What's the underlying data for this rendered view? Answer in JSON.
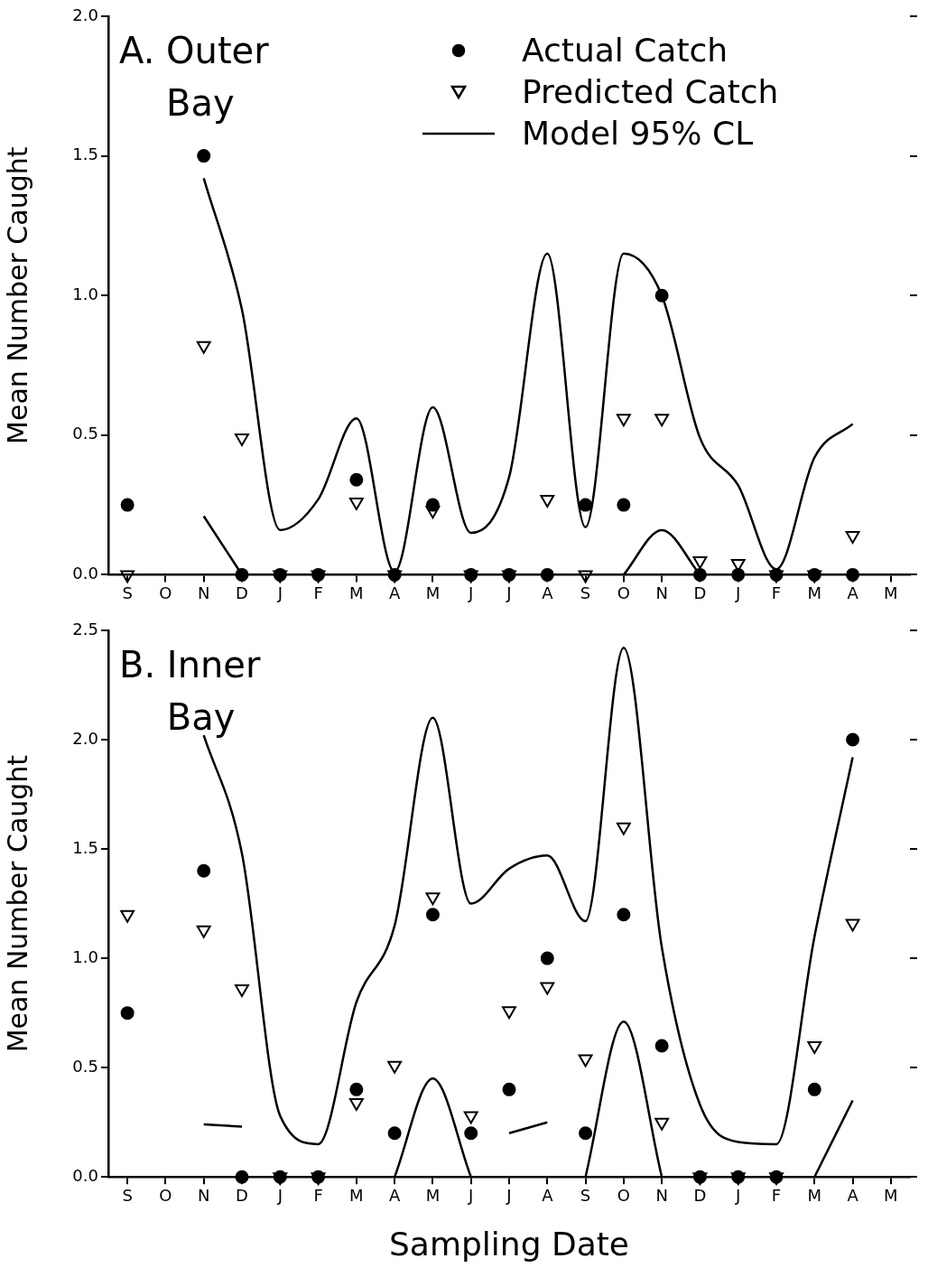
{
  "chart_data": [
    {
      "type": "scatter",
      "title": "A. Outer Bay",
      "ylabel": "Mean Number Caught",
      "legend": "top right",
      "categories": [
        "S",
        "O",
        "N",
        "D",
        "J",
        "F",
        "M",
        "A",
        "M",
        "J",
        "J",
        "A",
        "S",
        "O",
        "N",
        "D",
        "J",
        "F",
        "M",
        "A",
        "M"
      ],
      "ylim": [
        0,
        2
      ],
      "yticks": [
        {
          "value": 0,
          "label": "0.0"
        },
        {
          "value": 0.5,
          "label": "0.5"
        },
        {
          "value": 1,
          "label": "1.0"
        },
        {
          "value": 1.5,
          "label": "1.5"
        },
        {
          "value": 2,
          "label": "2.0"
        }
      ],
      "series": [
        {
          "name": "Actual Catch",
          "type": "scatter",
          "marker": "circle",
          "color": "#000000",
          "values": [
            0.25,
            null,
            1.5,
            0,
            0,
            0,
            0.34,
            0,
            0.25,
            0,
            0,
            0,
            0.25,
            0.25,
            1.0,
            0,
            0,
            0,
            0,
            0,
            null
          ]
        },
        {
          "name": "Predicted Catch",
          "type": "scatter",
          "marker": "triangle",
          "color": "#000000",
          "values": [
            0,
            null,
            0.82,
            0.49,
            0,
            0,
            0.26,
            0,
            0.23,
            0,
            0,
            0.27,
            0,
            0.56,
            0.56,
            0.05,
            0.04,
            0,
            0,
            0.14,
            null
          ]
        },
        {
          "name": "Model 95% CL",
          "type": "line",
          "marker": "none",
          "color": "#000000",
          "values": [
            null,
            null,
            1.42,
            0.95,
            0.16,
            0.27,
            0.56,
            0.01,
            0.6,
            0.15,
            0.35,
            1.15,
            0.17,
            1.15,
            1.0,
            0.49,
            0.32,
            0.02,
            0.42,
            0.54,
            null
          ]
        },
        {
          "type": "line",
          "marker": "none",
          "color": "#000000",
          "values": [
            null,
            null,
            0.21,
            0,
            null,
            null,
            null,
            null,
            null,
            null,
            null,
            null,
            null,
            null,
            null,
            null,
            null,
            null,
            null,
            null,
            null
          ]
        },
        {
          "type": "line",
          "marker": "none",
          "color": "#000000",
          "values": [
            null,
            null,
            null,
            null,
            null,
            null,
            null,
            null,
            null,
            null,
            null,
            null,
            null,
            0,
            0.16,
            0,
            null,
            null,
            null,
            null,
            null
          ]
        }
      ]
    },
    {
      "type": "scatter",
      "title": "B. Inner Bay",
      "xlabel": "Sampling Date",
      "ylabel": "Mean Number Caught",
      "categories": [
        "S",
        "O",
        "N",
        "D",
        "J",
        "F",
        "M",
        "A",
        "M",
        "J",
        "J",
        "A",
        "S",
        "O",
        "N",
        "D",
        "J",
        "F",
        "M",
        "A",
        "M"
      ],
      "ylim": [
        0,
        2.5
      ],
      "yticks": [
        {
          "value": 0,
          "label": "0.0"
        },
        {
          "value": 0.5,
          "label": "0.5"
        },
        {
          "value": 1,
          "label": "1.0"
        },
        {
          "value": 1.5,
          "label": "1.5"
        },
        {
          "value": 2,
          "label": "2.0"
        },
        {
          "value": 2.5,
          "label": "2.5"
        }
      ],
      "series": [
        {
          "type": "scatter",
          "marker": "circle",
          "color": "#000000",
          "values": [
            0.75,
            null,
            1.4,
            0,
            0,
            0,
            0.4,
            0.2,
            1.2,
            0.2,
            0.4,
            1.0,
            0.2,
            1.2,
            0.6,
            0,
            0,
            0,
            0.4,
            2.0,
            null
          ]
        },
        {
          "type": "scatter",
          "marker": "triangle",
          "color": "#000000",
          "values": [
            1.2,
            null,
            1.13,
            0.86,
            0,
            0,
            0.34,
            0.51,
            1.28,
            0.28,
            0.76,
            0.87,
            0.54,
            1.6,
            0.25,
            0,
            0,
            0,
            0.6,
            1.16,
            null
          ]
        },
        {
          "type": "line",
          "marker": "none",
          "color": "#000000",
          "values": [
            null,
            null,
            2.02,
            1.48,
            0.28,
            0.15,
            0.8,
            1.15,
            2.1,
            1.25,
            1.41,
            1.47,
            1.17,
            2.42,
            1.05,
            0.33,
            0.16,
            0.15,
            1.1,
            1.92,
            null
          ]
        },
        {
          "type": "line",
          "marker": "none",
          "color": "#000000",
          "values": [
            null,
            null,
            0.24,
            0.23,
            null,
            null,
            null,
            null,
            null,
            null,
            null,
            null,
            null,
            null,
            null,
            null,
            null,
            null,
            null,
            null,
            null
          ]
        },
        {
          "type": "line",
          "marker": "none",
          "color": "#000000",
          "values": [
            null,
            null,
            null,
            null,
            null,
            null,
            null,
            0,
            0.45,
            0,
            null,
            null,
            null,
            null,
            null,
            null,
            null,
            null,
            null,
            null,
            null
          ]
        },
        {
          "type": "line",
          "marker": "none",
          "color": "#000000",
          "values": [
            null,
            null,
            null,
            null,
            null,
            null,
            null,
            null,
            null,
            null,
            0.2,
            0.25,
            null,
            null,
            null,
            null,
            null,
            null,
            null,
            null,
            null
          ]
        },
        {
          "type": "line",
          "marker": "none",
          "color": "#000000",
          "values": [
            null,
            null,
            null,
            null,
            null,
            null,
            null,
            null,
            null,
            null,
            null,
            null,
            0,
            0.71,
            0,
            null,
            null,
            null,
            null,
            null,
            null
          ]
        },
        {
          "type": "line",
          "marker": "none",
          "color": "#000000",
          "values": [
            null,
            null,
            null,
            null,
            null,
            null,
            null,
            null,
            null,
            null,
            null,
            null,
            null,
            null,
            null,
            null,
            null,
            null,
            0,
            0.35,
            null
          ]
        }
      ]
    }
  ]
}
